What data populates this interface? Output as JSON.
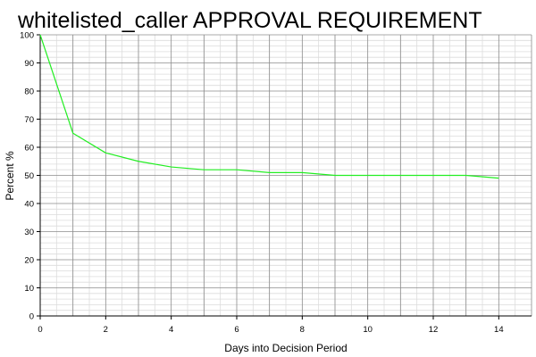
{
  "chart_data": {
    "type": "line",
    "title": "whitelisted_caller APPROVAL REQUIREMENT",
    "xlabel": "Days into Decision Period",
    "ylabel": "Percent %",
    "xlim": [
      0,
      15
    ],
    "ylim": [
      0,
      100
    ],
    "x_ticks": [
      0,
      2,
      4,
      6,
      8,
      10,
      12,
      14
    ],
    "y_ticks": [
      0,
      10,
      20,
      30,
      40,
      50,
      60,
      70,
      80,
      90,
      100
    ],
    "grid": true,
    "minor_grid": true,
    "legend": "none",
    "series": [
      {
        "color": "#22ee22",
        "x": [
          0,
          1,
          2,
          3,
          4,
          5,
          6,
          7,
          8,
          9,
          10,
          11,
          12,
          13,
          14
        ],
        "y": [
          100,
          65,
          58,
          55,
          53,
          52,
          52,
          51,
          51,
          50,
          50,
          50,
          50,
          50,
          49
        ]
      }
    ],
    "colors": {
      "major_grid": "#8c8c8c",
      "minor_grid": "#dcdcdc",
      "axis": "#000000"
    }
  }
}
